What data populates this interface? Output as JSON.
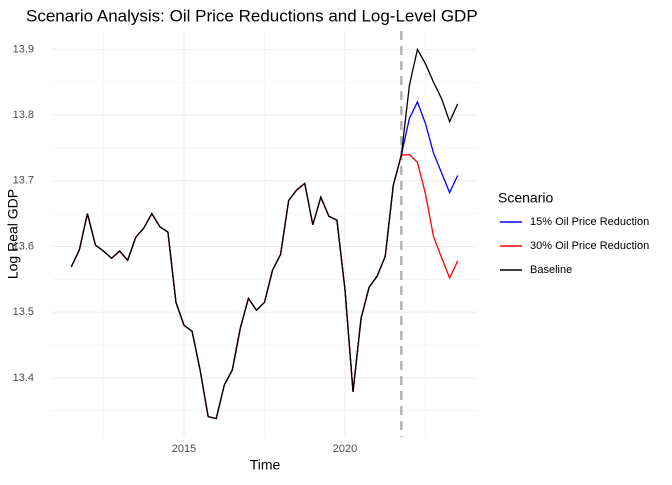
{
  "chart_data": {
    "type": "line",
    "title": "Scenario Analysis: Oil Price Reductions and Log-Level GDP",
    "x_label": "Time",
    "y_label": "Log Real GDP",
    "legend_title": "Scenario",
    "x": [
      2011.5,
      2011.75,
      2012,
      2012.25,
      2012.5,
      2012.75,
      2013,
      2013.25,
      2013.5,
      2013.75,
      2014,
      2014.25,
      2014.5,
      2014.75,
      2015,
      2015.25,
      2015.5,
      2015.75,
      2016,
      2016.25,
      2016.5,
      2016.75,
      2017,
      2017.25,
      2017.5,
      2017.75,
      2018,
      2018.25,
      2018.5,
      2018.75,
      2019,
      2019.25,
      2019.5,
      2019.75,
      2020,
      2020.25,
      2020.5,
      2020.75,
      2021,
      2021.25,
      2021.5,
      2021.75,
      2022,
      2022.25,
      2022.5,
      2022.75,
      2023,
      2023.25,
      2023.5
    ],
    "series": [
      {
        "name": "15% Oil Price Reduction",
        "color": "#0000ff",
        "values": [
          13.569,
          13.595,
          13.65,
          13.602,
          13.593,
          13.582,
          13.593,
          13.579,
          13.614,
          13.628,
          13.65,
          13.63,
          13.622,
          13.515,
          13.48,
          13.471,
          13.412,
          13.341,
          13.338,
          13.389,
          13.412,
          13.476,
          13.521,
          13.503,
          13.515,
          13.564,
          13.588,
          13.67,
          13.686,
          13.696,
          13.633,
          13.675,
          13.646,
          13.64,
          13.534,
          13.379,
          13.491,
          13.538,
          13.555,
          13.585,
          13.693,
          13.739,
          13.795,
          13.82,
          13.787,
          13.742,
          13.712,
          13.682,
          13.708
        ]
      },
      {
        "name": "30% Oil Price Reduction",
        "color": "#ff0000",
        "values": [
          13.569,
          13.595,
          13.65,
          13.602,
          13.593,
          13.582,
          13.593,
          13.579,
          13.614,
          13.628,
          13.65,
          13.63,
          13.622,
          13.515,
          13.48,
          13.471,
          13.412,
          13.341,
          13.338,
          13.389,
          13.412,
          13.476,
          13.521,
          13.503,
          13.515,
          13.564,
          13.588,
          13.67,
          13.686,
          13.696,
          13.633,
          13.675,
          13.646,
          13.64,
          13.534,
          13.379,
          13.491,
          13.538,
          13.555,
          13.585,
          13.693,
          13.739,
          13.74,
          13.728,
          13.68,
          13.615,
          13.583,
          13.552,
          13.578
        ]
      },
      {
        "name": "Baseline",
        "color": "#000000",
        "values": [
          13.569,
          13.595,
          13.65,
          13.602,
          13.593,
          13.582,
          13.593,
          13.579,
          13.614,
          13.628,
          13.65,
          13.63,
          13.622,
          13.515,
          13.48,
          13.471,
          13.412,
          13.341,
          13.338,
          13.389,
          13.412,
          13.476,
          13.521,
          13.503,
          13.515,
          13.564,
          13.588,
          13.67,
          13.686,
          13.696,
          13.633,
          13.675,
          13.646,
          13.64,
          13.534,
          13.379,
          13.491,
          13.538,
          13.555,
          13.585,
          13.693,
          13.739,
          13.845,
          13.9,
          13.878,
          13.85,
          13.825,
          13.79,
          13.817
        ]
      }
    ],
    "vline": 2021.75,
    "vline_color": "#b3b3b3",
    "xlim": [
      2010.9,
      2024.1
    ],
    "xticks": [
      2015,
      2020
    ],
    "ylim": [
      13.31,
      13.928
    ],
    "yticks": [
      13.4,
      13.5,
      13.6,
      13.7,
      13.8,
      13.9
    ],
    "grid": true,
    "legend": "right"
  }
}
